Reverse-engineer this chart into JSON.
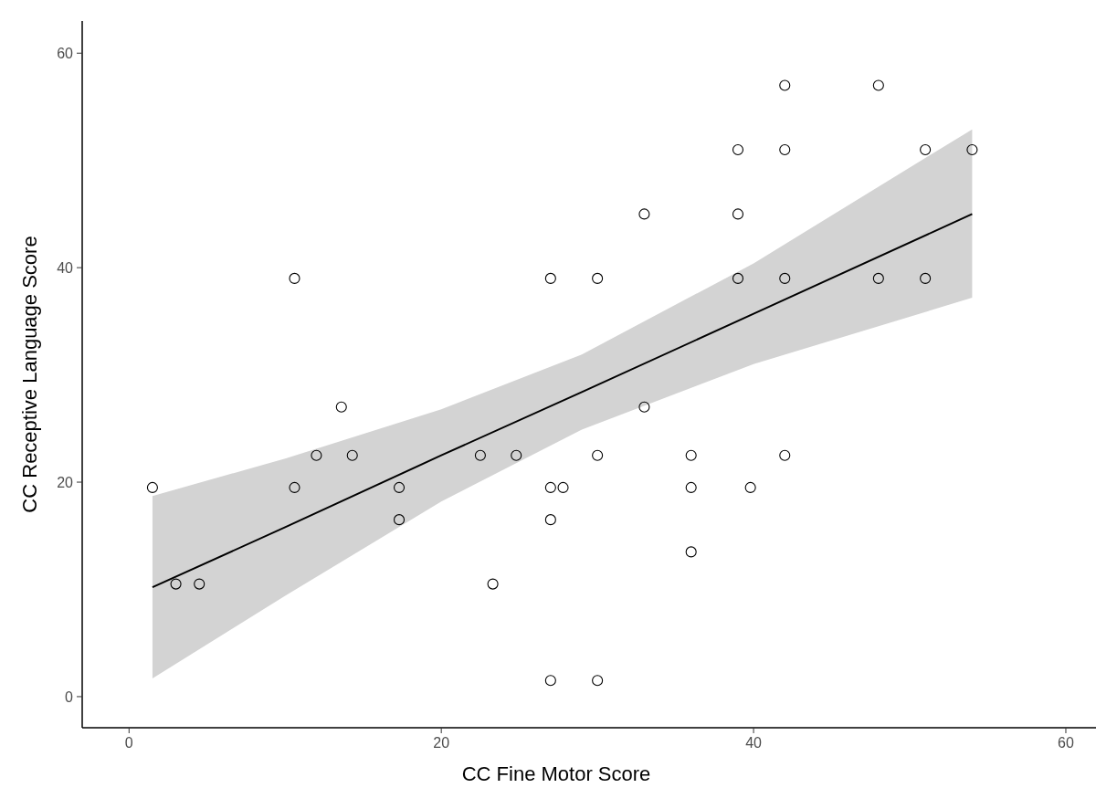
{
  "chart_data": {
    "type": "scatter",
    "xlabel": "CC Fine Motor Score",
    "ylabel": "CC Receptive Language Score",
    "xlim": [
      -3,
      62.4
    ],
    "ylim": [
      -2.9,
      63
    ],
    "xticks": [
      0,
      20,
      40,
      60
    ],
    "yticks": [
      0,
      20,
      40,
      60
    ],
    "grid": false,
    "series": [
      {
        "type": "line",
        "color": "#000000",
        "x": [
          1.5,
          10,
          20,
          29,
          40,
          54
        ],
        "values": [
          10.2,
          15.8,
          22.5,
          28.4,
          35.7,
          45.0
        ],
        "lower": [
          1.7,
          9.4,
          18.2,
          24.9,
          31.0,
          37.2
        ],
        "upper": [
          18.7,
          22.2,
          26.8,
          31.9,
          40.4,
          52.9
        ]
      },
      {
        "type": "scatter",
        "color": "#000000",
        "marker": "circle",
        "x": [
          1.5,
          3,
          4.5,
          10.6,
          10.6,
          13.6,
          12,
          14.3,
          17.3,
          17.3,
          22.5,
          23.3,
          24.8,
          27,
          27,
          27,
          27,
          27.8,
          30,
          30,
          30,
          33,
          33,
          36,
          36,
          36,
          39,
          39,
          39,
          39.8,
          42,
          42,
          42,
          42,
          48,
          48,
          51,
          51,
          54
        ],
        "values": [
          19.5,
          10.5,
          10.5,
          39,
          19.5,
          27,
          22.5,
          22.5,
          19.5,
          16.5,
          22.5,
          10.5,
          22.5,
          39,
          19.5,
          16.5,
          1.5,
          19.5,
          39,
          22.5,
          1.5,
          45,
          27,
          22.5,
          19.5,
          13.5,
          51,
          45,
          39,
          19.5,
          57,
          51,
          39,
          22.5,
          57,
          39,
          51,
          39,
          51
        ]
      }
    ]
  }
}
